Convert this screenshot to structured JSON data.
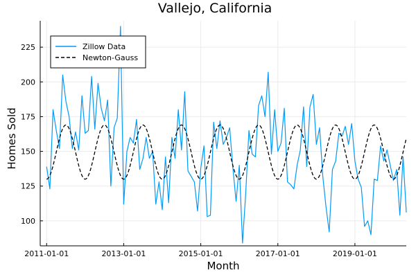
{
  "chart_data": {
    "type": "line",
    "title": "Vallejo, California",
    "xlabel": "Month",
    "ylabel": "Homes Sold",
    "x_tick_labels": [
      "2011-01-01",
      "2013-01-01",
      "2015-01-01",
      "2017-01-01",
      "2019-01-01"
    ],
    "y_ticks": [
      100,
      125,
      150,
      175,
      200,
      225
    ],
    "xlim": [
      "2010-11-01",
      "2020-05-01"
    ],
    "ylim": [
      82,
      244
    ],
    "grid": true,
    "legend_position": "top-left",
    "colors": {
      "zillow": "#009af9",
      "newton": "#000000"
    },
    "series": [
      {
        "name": "Zillow Data",
        "style": "solid",
        "start": "2011-01-01",
        "frequency": "monthly",
        "values": [
          139,
          123,
          180,
          165,
          152,
          205,
          186,
          175,
          152,
          164,
          151,
          190,
          163,
          165,
          204,
          166,
          199,
          181,
          172,
          187,
          125,
          167,
          174,
          240,
          112,
          150,
          160,
          156,
          173,
          137,
          145,
          160,
          145,
          150,
          112,
          128,
          108,
          146,
          113,
          160,
          145,
          180,
          151,
          193,
          136,
          132,
          128,
          107,
          138,
          154,
          103,
          104,
          171,
          152,
          172,
          155,
          160,
          167,
          138,
          114,
          140,
          84,
          120,
          165,
          148,
          146,
          183,
          190,
          175,
          207,
          148,
          180,
          150,
          156,
          181,
          128,
          126,
          123,
          140,
          151,
          182,
          139,
          182,
          191,
          155,
          167,
          132,
          110,
          92,
          137,
          143,
          163,
          161,
          168,
          155,
          170,
          143,
          130,
          124,
          96,
          100,
          90,
          130,
          129,
          154,
          143,
          151,
          140,
          129,
          137,
          104,
          146,
          106
        ]
      },
      {
        "name": "Newton-Gauss",
        "style": "dashed",
        "model": "sinusoid",
        "mean": 149.5,
        "amplitude": 19.5,
        "period_months": 12,
        "phase_peak_month": 6,
        "start": "2011-01-01",
        "frequency": "monthly",
        "length": 113
      }
    ]
  }
}
